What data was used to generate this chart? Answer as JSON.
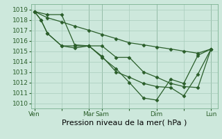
{
  "bg_color": "#cde8dc",
  "grid_color": "#a8ccbc",
  "line_color": "#2a5e2a",
  "marker_color": "#2a5e2a",
  "xlabel": "Pression niveau de la mer( hPa )",
  "xlabel_fontsize": 8,
  "ylabel_fontsize": 6.5,
  "tick_fontsize": 6.5,
  "ylim": [
    1009.5,
    1019.5
  ],
  "yticks": [
    1010,
    1011,
    1012,
    1013,
    1014,
    1015,
    1016,
    1017,
    1018,
    1019
  ],
  "xtick_labels": [
    "Ven",
    "",
    "Mar",
    "Sam",
    "",
    "Dim",
    "",
    "Lun"
  ],
  "xtick_positions": [
    0,
    25,
    50,
    62,
    87,
    112,
    137,
    162
  ],
  "total_xsteps": 162,
  "series1_x": [
    0,
    12,
    25,
    37,
    50,
    62,
    75,
    87,
    100,
    112,
    125,
    137,
    150,
    162
  ],
  "series1_y": [
    1018.8,
    1018.2,
    1017.8,
    1017.4,
    1017.0,
    1016.6,
    1016.2,
    1015.8,
    1015.6,
    1015.4,
    1015.2,
    1015.0,
    1014.8,
    1015.2
  ],
  "series2_x": [
    0,
    12,
    25,
    37,
    50,
    62,
    75,
    87,
    100,
    112,
    125,
    137,
    150,
    162
  ],
  "series2_y": [
    1018.8,
    1018.5,
    1018.5,
    1015.6,
    1015.5,
    1015.5,
    1014.4,
    1014.4,
    1013.0,
    1012.5,
    1011.9,
    1011.6,
    1011.5,
    1015.2
  ],
  "series3_x": [
    0,
    6,
    12,
    25,
    37,
    50,
    62,
    75,
    87,
    100,
    112,
    125,
    137,
    150,
    162
  ],
  "series3_y": [
    1018.8,
    1018.0,
    1016.7,
    1015.5,
    1015.3,
    1015.5,
    1014.4,
    1013.3,
    1012.0,
    1010.5,
    1010.3,
    1012.3,
    1011.9,
    1014.6,
    1015.2
  ],
  "series4_x": [
    0,
    6,
    12,
    25,
    37,
    50,
    62,
    75,
    87,
    100,
    112,
    125,
    137,
    150,
    162
  ],
  "series4_y": [
    1018.8,
    1018.0,
    1016.7,
    1015.5,
    1015.5,
    1015.5,
    1014.5,
    1013.0,
    1012.5,
    1011.9,
    1011.6,
    1011.5,
    1010.7,
    1012.8,
    1015.2
  ],
  "vline_positions": [
    0,
    50,
    62,
    112,
    162
  ],
  "xlim": [
    -3,
    168
  ]
}
